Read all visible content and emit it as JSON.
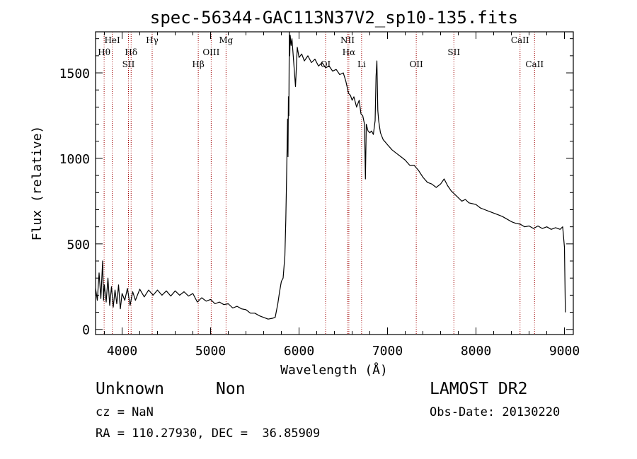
{
  "chart_data": {
    "type": "line",
    "title": "spec-56344-GAC113N37V2_sp10-135.fits",
    "xlabel": "Wavelength (Å)",
    "ylabel": "Flux (relative)",
    "xlim": [
      3700,
      9100
    ],
    "ylim": [
      -30,
      1740
    ],
    "x_ticks": [
      4000,
      5000,
      6000,
      7000,
      8000,
      9000
    ],
    "x_tick_labels": [
      "4000",
      "5000",
      "6000",
      "7000",
      "8000",
      "9000"
    ],
    "y_ticks": [
      0,
      500,
      1000,
      1500
    ],
    "y_tick_labels": [
      "0",
      "500",
      "1000",
      "1500"
    ],
    "grid": false,
    "series": [
      {
        "color": "#000000",
        "points": [
          [
            3700,
            240
          ],
          [
            3720,
            170
          ],
          [
            3740,
            330
          ],
          [
            3760,
            180
          ],
          [
            3780,
            400
          ],
          [
            3790,
            170
          ],
          [
            3800,
            260
          ],
          [
            3820,
            160
          ],
          [
            3840,
            300
          ],
          [
            3860,
            140
          ],
          [
            3880,
            250
          ],
          [
            3900,
            130
          ],
          [
            3920,
            230
          ],
          [
            3940,
            150
          ],
          [
            3960,
            260
          ],
          [
            3980,
            120
          ],
          [
            4000,
            210
          ],
          [
            4030,
            170
          ],
          [
            4060,
            240
          ],
          [
            4090,
            140
          ],
          [
            4120,
            220
          ],
          [
            4150,
            170
          ],
          [
            4200,
            235
          ],
          [
            4250,
            190
          ],
          [
            4300,
            230
          ],
          [
            4350,
            200
          ],
          [
            4400,
            230
          ],
          [
            4450,
            200
          ],
          [
            4500,
            225
          ],
          [
            4550,
            195
          ],
          [
            4600,
            225
          ],
          [
            4650,
            200
          ],
          [
            4700,
            220
          ],
          [
            4750,
            195
          ],
          [
            4800,
            210
          ],
          [
            4850,
            160
          ],
          [
            4900,
            185
          ],
          [
            4950,
            165
          ],
          [
            5000,
            175
          ],
          [
            5050,
            150
          ],
          [
            5100,
            160
          ],
          [
            5150,
            145
          ],
          [
            5200,
            150
          ],
          [
            5250,
            125
          ],
          [
            5300,
            135
          ],
          [
            5350,
            120
          ],
          [
            5400,
            115
          ],
          [
            5450,
            95
          ],
          [
            5500,
            95
          ],
          [
            5550,
            80
          ],
          [
            5600,
            70
          ],
          [
            5650,
            60
          ],
          [
            5700,
            65
          ],
          [
            5730,
            70
          ],
          [
            5760,
            150
          ],
          [
            5780,
            220
          ],
          [
            5800,
            280
          ],
          [
            5820,
            300
          ],
          [
            5840,
            430
          ],
          [
            5850,
            640
          ],
          [
            5860,
            910
          ],
          [
            5870,
            1230
          ],
          [
            5875,
            1010
          ],
          [
            5880,
            1360
          ],
          [
            5885,
            1250
          ],
          [
            5890,
            1740
          ],
          [
            5895,
            1600
          ],
          [
            5900,
            1720
          ],
          [
            5910,
            1660
          ],
          [
            5920,
            1700
          ],
          [
            5940,
            1560
          ],
          [
            5960,
            1420
          ],
          [
            5980,
            1650
          ],
          [
            6000,
            1590
          ],
          [
            6030,
            1610
          ],
          [
            6060,
            1570
          ],
          [
            6100,
            1600
          ],
          [
            6140,
            1560
          ],
          [
            6180,
            1580
          ],
          [
            6220,
            1540
          ],
          [
            6260,
            1560
          ],
          [
            6300,
            1530
          ],
          [
            6340,
            1540
          ],
          [
            6380,
            1510
          ],
          [
            6420,
            1520
          ],
          [
            6460,
            1490
          ],
          [
            6500,
            1500
          ],
          [
            6530,
            1450
          ],
          [
            6560,
            1380
          ],
          [
            6580,
            1370
          ],
          [
            6600,
            1340
          ],
          [
            6620,
            1360
          ],
          [
            6650,
            1300
          ],
          [
            6680,
            1340
          ],
          [
            6700,
            1260
          ],
          [
            6720,
            1250
          ],
          [
            6740,
            1200
          ],
          [
            6750,
            880
          ],
          [
            6760,
            1200
          ],
          [
            6780,
            1160
          ],
          [
            6800,
            1150
          ],
          [
            6820,
            1160
          ],
          [
            6840,
            1140
          ],
          [
            6860,
            1220
          ],
          [
            6870,
            1480
          ],
          [
            6880,
            1570
          ],
          [
            6890,
            1280
          ],
          [
            6900,
            1220
          ],
          [
            6920,
            1150
          ],
          [
            6950,
            1110
          ],
          [
            7000,
            1080
          ],
          [
            7050,
            1050
          ],
          [
            7100,
            1030
          ],
          [
            7150,
            1010
          ],
          [
            7200,
            990
          ],
          [
            7250,
            960
          ],
          [
            7300,
            960
          ],
          [
            7350,
            930
          ],
          [
            7400,
            890
          ],
          [
            7450,
            860
          ],
          [
            7500,
            850
          ],
          [
            7550,
            830
          ],
          [
            7600,
            850
          ],
          [
            7640,
            880
          ],
          [
            7680,
            840
          ],
          [
            7720,
            810
          ],
          [
            7760,
            790
          ],
          [
            7800,
            770
          ],
          [
            7840,
            750
          ],
          [
            7880,
            760
          ],
          [
            7920,
            740
          ],
          [
            7960,
            735
          ],
          [
            8000,
            730
          ],
          [
            8050,
            710
          ],
          [
            8100,
            700
          ],
          [
            8150,
            690
          ],
          [
            8200,
            680
          ],
          [
            8250,
            670
          ],
          [
            8300,
            660
          ],
          [
            8350,
            645
          ],
          [
            8400,
            630
          ],
          [
            8450,
            620
          ],
          [
            8500,
            615
          ],
          [
            8550,
            600
          ],
          [
            8600,
            605
          ],
          [
            8650,
            590
          ],
          [
            8700,
            605
          ],
          [
            8750,
            590
          ],
          [
            8800,
            600
          ],
          [
            8850,
            585
          ],
          [
            8900,
            595
          ],
          [
            8950,
            585
          ],
          [
            8980,
            600
          ],
          [
            9000,
            480
          ],
          [
            9010,
            100
          ]
        ]
      }
    ],
    "lines": [
      {
        "x": 3797,
        "label": "Hθ",
        "row": 2
      },
      {
        "x": 3889,
        "label": "HeI",
        "row": 1
      },
      {
        "x": 4072,
        "label": "SII",
        "row": 3
      },
      {
        "x": 4102,
        "label": "Hδ",
        "row": 2
      },
      {
        "x": 4340,
        "label": "Hγ",
        "row": 1
      },
      {
        "x": 4861,
        "label": "Hβ",
        "row": 3
      },
      {
        "x": 5007,
        "label": "OIII",
        "row": 2
      },
      {
        "x": 5175,
        "label": "Mg",
        "row": 1
      },
      {
        "x": 6300,
        "label": "OI",
        "row": 3
      },
      {
        "x": 6548,
        "label": "NII",
        "row": 1
      },
      {
        "x": 6563,
        "label": "Hα",
        "row": 2
      },
      {
        "x": 6707,
        "label": "Li",
        "row": 3
      },
      {
        "x": 7325,
        "label": "OII",
        "row": 3
      },
      {
        "x": 7750,
        "label": "SII",
        "row": 2
      },
      {
        "x": 8498,
        "label": "CaII",
        "row": 1
      },
      {
        "x": 8662,
        "label": "CaII",
        "row": 3
      }
    ]
  },
  "info": {
    "class": "Unknown",
    "subclass": "Non",
    "survey": "LAMOST DR2",
    "cz": "cz = NaN",
    "obs_date": "Obs-Date: 20130220",
    "coords": "RA = 110.27930, DEC =  36.85909"
  }
}
